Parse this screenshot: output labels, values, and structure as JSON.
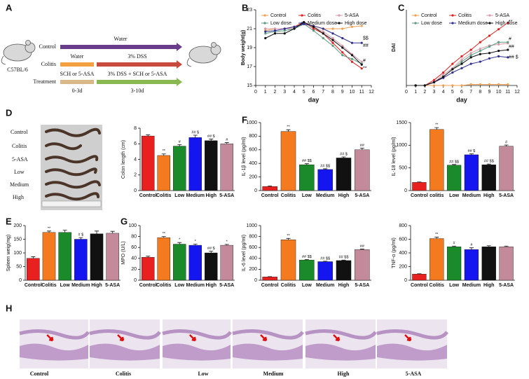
{
  "schematic": {
    "panel": "A",
    "control": "Control",
    "colitis": "Colitis",
    "treatment": "Treatment",
    "water_control": "Water",
    "water_colitis": "Water",
    "dss": "3% DSS",
    "pre": "SCH or 5-ASA",
    "treat": "3% DSS + SCH or 5-ASA",
    "days1": "0-3d",
    "days2": "3-10d",
    "strain": "C57BL/6"
  },
  "photo": {
    "panel": "D",
    "labels": [
      "Control",
      "Colitis",
      "5-ASA",
      "Low",
      "Medium",
      "High"
    ]
  },
  "histology": {
    "panel": "H",
    "labels": [
      "Control",
      "Colitis",
      "Low",
      "Medium",
      "High",
      "5-ASA"
    ]
  },
  "chart_data": [
    {
      "type": "line",
      "panel": "B",
      "x_label": "day",
      "y_label": "Body weight(g)",
      "x": [
        1,
        2,
        3,
        4,
        5,
        6,
        7,
        8,
        9,
        10,
        11
      ],
      "xlim": [
        0,
        12
      ],
      "xticks": [
        0,
        1,
        2,
        3,
        4,
        5,
        6,
        7,
        8,
        9,
        10,
        11,
        12
      ],
      "ylim": [
        15,
        23
      ],
      "yticks": [
        15,
        17,
        19,
        21,
        23
      ],
      "series": [
        {
          "name": "Control",
          "color": "#f0a050",
          "values": [
            20.8,
            21,
            21,
            21.2,
            21.5,
            21.3,
            21,
            21,
            21,
            21.2,
            21.3
          ]
        },
        {
          "name": "Colitis",
          "color": "#e02020",
          "values": [
            21,
            21,
            21,
            21.2,
            21.7,
            21,
            20.5,
            19.5,
            18.5,
            17.5,
            16.8
          ]
        },
        {
          "name": "5-ASA",
          "color": "#d89aa8",
          "values": [
            21,
            21,
            21,
            21,
            21.5,
            21.2,
            20.7,
            20,
            19.2,
            18.3,
            17.5
          ]
        },
        {
          "name": "Low dose",
          "color": "#5a9a80",
          "values": [
            20.5,
            20.7,
            20.8,
            21,
            21.5,
            20.8,
            20,
            19.2,
            18.2,
            17.8,
            17.3
          ]
        },
        {
          "name": "Medium dose",
          "color": "#303090",
          "values": [
            20.7,
            20.8,
            21,
            21.2,
            21.5,
            21.3,
            21,
            20.5,
            20,
            19.5,
            19.5
          ]
        },
        {
          "name": "High dose",
          "color": "#111111",
          "values": [
            20,
            20.5,
            20.5,
            21,
            21.7,
            21.2,
            20.5,
            19.8,
            19,
            18.2,
            17.2
          ]
        }
      ],
      "annotations": [
        {
          "text": "$$",
          "y": 20
        },
        {
          "text": "##",
          "y": 19.2
        },
        {
          "text": "#",
          "y": 17.6
        },
        {
          "text": "**",
          "y": 16.8
        }
      ]
    },
    {
      "type": "line",
      "panel": "C",
      "x_label": "day",
      "y_label": "DAI",
      "x": [
        1,
        2,
        3,
        4,
        5,
        6,
        7,
        8,
        9,
        10,
        11
      ],
      "xlim": [
        0,
        12
      ],
      "xticks": [
        0,
        1,
        2,
        3,
        4,
        5,
        6,
        7,
        8,
        9,
        10,
        11,
        12
      ],
      "ylim": [
        0,
        7
      ],
      "series": [
        {
          "name": "Control",
          "color": "#f0a050",
          "values": [
            0,
            0,
            0,
            0,
            0,
            0,
            0.1,
            0.1,
            0.1,
            0.1,
            0.1
          ]
        },
        {
          "name": "Colitis",
          "color": "#e02020",
          "values": [
            0,
            0,
            0.5,
            1.2,
            2,
            2.7,
            3.3,
            4,
            4.6,
            5.2,
            5.8
          ]
        },
        {
          "name": "5-ASA",
          "color": "#d89aa8",
          "values": [
            0,
            0,
            0.3,
            1,
            1.6,
            2.4,
            3,
            3.4,
            3.7,
            3.8,
            3.9
          ]
        },
        {
          "name": "Low dose",
          "color": "#5a9a80",
          "values": [
            0,
            0,
            0.3,
            0.8,
            1.5,
            2.2,
            2.8,
            3.2,
            3.6,
            4,
            4
          ]
        },
        {
          "name": "Medium dose",
          "color": "#303090",
          "values": [
            0,
            0,
            0.3,
            0.7,
            1.2,
            1.6,
            2,
            2.2,
            2.5,
            2.7,
            2.6
          ]
        },
        {
          "name": "High dose",
          "color": "#111111",
          "values": [
            0,
            0,
            0.3,
            0.8,
            1.5,
            2,
            2.6,
            2.9,
            3,
            3.2,
            3.3
          ]
        }
      ],
      "annotations": [
        {
          "text": "**",
          "y": 5.9
        },
        {
          "text": "#",
          "y": 4.3
        },
        {
          "text": "##",
          "y": 3.6
        },
        {
          "text": "## $",
          "y": 2.6
        }
      ]
    },
    {
      "type": "bar",
      "y_label": "Colon length (cm)",
      "categories": [
        "Control",
        "Colitis",
        "Low",
        "Medium",
        "High",
        "5-ASA"
      ],
      "values": [
        7,
        4.5,
        5.7,
        6.8,
        6.4,
        6
      ],
      "errors": [
        0.15,
        0.2,
        0.2,
        0.3,
        0.2,
        0.15
      ],
      "colors": [
        "#e8201f",
        "#f47a20",
        "#1a8a2a",
        "#1515f0",
        "#111111",
        "#c28a9a"
      ],
      "ylim": [
        0,
        8
      ],
      "yticks": [
        0,
        2,
        4,
        6,
        8
      ],
      "bar_annotations": [
        null,
        "**",
        "#",
        "## $",
        "## $",
        "#"
      ]
    },
    {
      "type": "bar",
      "panel": "F",
      "y_label": "IL-1β level (pg/ml)",
      "categories": [
        "Control",
        "Colitis",
        "Low",
        "Medium",
        "High",
        "5-ASA"
      ],
      "values": [
        60,
        870,
        380,
        310,
        480,
        600
      ],
      "errors": [
        8,
        25,
        15,
        10,
        15,
        25
      ],
      "colors": [
        "#e8201f",
        "#f47a20",
        "#1a8a2a",
        "#1515f0",
        "#111111",
        "#c28a9a"
      ],
      "ylim": [
        0,
        1000
      ],
      "yticks": [
        0,
        200,
        400,
        600,
        800,
        1000
      ],
      "bar_annotations": [
        null,
        "**",
        "## $$",
        "## $$",
        "## $",
        "##"
      ]
    },
    {
      "type": "bar",
      "y_label": "IL-18 level (pg/ml)",
      "categories": [
        "Control",
        "colitis",
        "Low",
        "Medium",
        "High",
        "5-ASA"
      ],
      "values": [
        180,
        1350,
        560,
        790,
        570,
        980
      ],
      "errors": [
        10,
        40,
        15,
        20,
        15,
        25
      ],
      "colors": [
        "#e8201f",
        "#f47a20",
        "#1a8a2a",
        "#1515f0",
        "#111111",
        "#c28a9a"
      ],
      "ylim": [
        0,
        1500
      ],
      "yticks": [
        0,
        500,
        1000,
        1500
      ],
      "bar_annotations": [
        null,
        "**",
        "## $$",
        "## $",
        "## $$",
        "#"
      ]
    },
    {
      "type": "bar",
      "panel": "E",
      "y_label": "Spleen weig(mg)",
      "categories": [
        "Control",
        "Colitis",
        "Low",
        "Medium",
        "High",
        "5-ASA"
      ],
      "values": [
        80,
        175,
        175,
        150,
        170,
        172
      ],
      "errors": [
        6,
        5,
        8,
        6,
        10,
        7
      ],
      "colors": [
        "#e8201f",
        "#f47a20",
        "#1a8a2a",
        "#1515f0",
        "#111111",
        "#c28a9a"
      ],
      "ylim": [
        0,
        200
      ],
      "yticks": [
        0,
        50,
        100,
        150,
        200
      ],
      "bar_annotations": [
        null,
        "**",
        null,
        "# $",
        null,
        null
      ]
    },
    {
      "type": "bar",
      "panel": "G",
      "y_label": "MPO (U/L)",
      "categories": [
        "Control",
        "Colitis",
        "Low",
        "Medium",
        "High",
        "5-ASA"
      ],
      "values": [
        42,
        78,
        66,
        64,
        50,
        64
      ],
      "errors": [
        2,
        2,
        3,
        2,
        3,
        1.5
      ],
      "colors": [
        "#e8201f",
        "#f47a20",
        "#1a8a2a",
        "#1515f0",
        "#111111",
        "#c28a9a"
      ],
      "ylim": [
        0,
        100
      ],
      "yticks": [
        0,
        20,
        40,
        60,
        80,
        100
      ],
      "bar_annotations": [
        null,
        "**",
        "*",
        "*",
        "## $",
        "*"
      ]
    },
    {
      "type": "bar",
      "y_label": "IL-6 level (pg/ml)",
      "categories": [
        "Control",
        "Colitis",
        "Low",
        "Medium",
        "High",
        "5-ASA"
      ],
      "values": [
        60,
        740,
        370,
        340,
        360,
        560
      ],
      "errors": [
        5,
        25,
        8,
        8,
        8,
        10
      ],
      "colors": [
        "#e8201f",
        "#f47a20",
        "#1a8a2a",
        "#1515f0",
        "#111111",
        "#c28a9a"
      ],
      "ylim": [
        0,
        1000
      ],
      "yticks": [
        0,
        200,
        400,
        600,
        800,
        1000
      ],
      "bar_annotations": [
        null,
        "**",
        "## $$",
        "## $$",
        "## $$",
        "##"
      ]
    },
    {
      "type": "bar",
      "y_label": "TNF-α (pg/ml)",
      "categories": [
        "Control",
        "Colitis",
        "Low",
        "Medium",
        "High",
        "5-ASA"
      ],
      "values": [
        90,
        610,
        490,
        450,
        490,
        490
      ],
      "errors": [
        5,
        20,
        10,
        25,
        15,
        10
      ],
      "colors": [
        "#e8201f",
        "#f47a20",
        "#1a8a2a",
        "#1515f0",
        "#111111",
        "#c28a9a"
      ],
      "ylim": [
        0,
        800
      ],
      "yticks": [
        0,
        200,
        400,
        600,
        800
      ],
      "bar_annotations": [
        null,
        "**",
        "#",
        "#",
        null,
        null
      ]
    }
  ]
}
